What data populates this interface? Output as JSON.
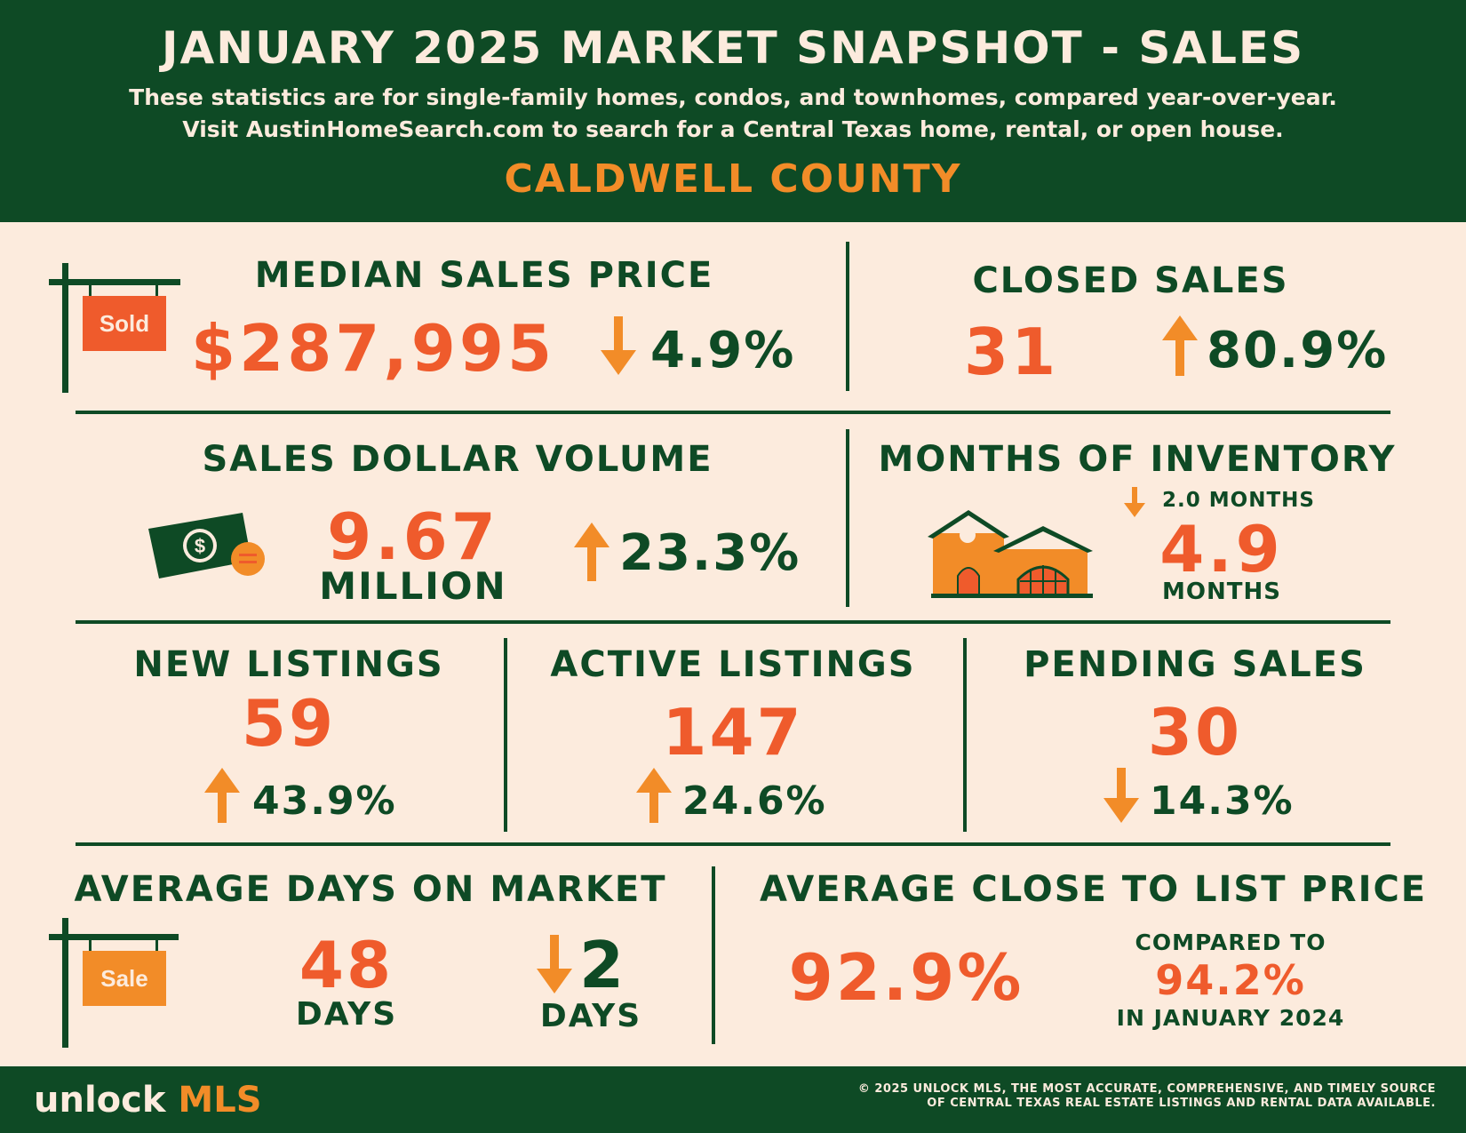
{
  "header": {
    "title": "JANUARY 2025 MARKET SNAPSHOT - SALES",
    "subtitle_line1": "These statistics are for single-family homes, condos, and townhomes, compared year-over-year.",
    "subtitle_line2": "Visit AustinHomeSearch.com to search for a Central Texas home, rental, or open house.",
    "county": "CALDWELL COUNTY"
  },
  "median_sales_price": {
    "label": "MEDIAN SALES PRICE",
    "value": "$287,995",
    "change": "4.9%",
    "direction": "down",
    "sign_text": "Sold"
  },
  "closed_sales": {
    "label": "CLOSED SALES",
    "value": "31",
    "change": "80.9%",
    "direction": "up"
  },
  "sales_dollar_volume": {
    "label": "SALES DOLLAR VOLUME",
    "value": "9.67",
    "unit": "MILLION",
    "change": "23.3%",
    "direction": "up"
  },
  "months_of_inventory": {
    "label": "MONTHS OF INVENTORY",
    "change": "2.0 MONTHS",
    "direction": "down",
    "value": "4.9",
    "unit": "MONTHS"
  },
  "new_listings": {
    "label": "NEW LISTINGS",
    "value": "59",
    "change": "43.9%",
    "direction": "up"
  },
  "active_listings": {
    "label": "ACTIVE LISTINGS",
    "value": "147",
    "change": "24.6%",
    "direction": "up"
  },
  "pending_sales": {
    "label": "PENDING SALES",
    "value": "30",
    "change": "14.3%",
    "direction": "down"
  },
  "avg_days_on_market": {
    "label": "AVERAGE DAYS ON MARKET",
    "value": "48",
    "unit": "DAYS",
    "change": "2",
    "change_unit": "DAYS",
    "direction": "down",
    "sign_text": "Sale"
  },
  "avg_close_to_list": {
    "label": "AVERAGE CLOSE TO LIST PRICE",
    "value": "92.9%",
    "compared_label": "COMPARED TO",
    "compared_value": "94.2%",
    "compared_period": "IN JANUARY 2024"
  },
  "footer": {
    "logo_word1": "unlock",
    "logo_word2": "MLS",
    "copyright_line1": "© 2025 UNLOCK MLS, THE MOST ACCURATE, COMPREHENSIVE, AND TIMELY SOURCE",
    "copyright_line2": "OF CENTRAL TEXAS REAL ESTATE LISTINGS AND RENTAL DATA AVAILABLE."
  },
  "colors": {
    "green": "#0e4a25",
    "orange": "#ef5b2c",
    "arrow_orange": "#f28c28",
    "cream": "#fcebdd"
  }
}
